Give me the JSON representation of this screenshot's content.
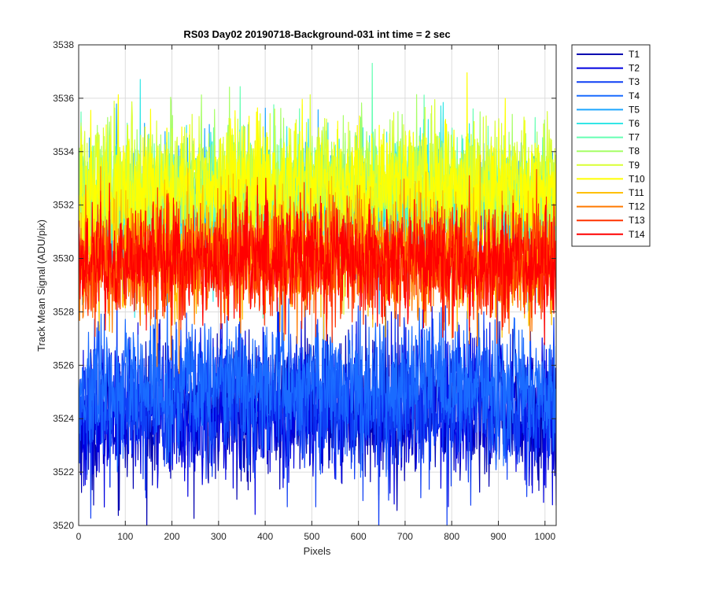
{
  "chart_data": {
    "type": "line",
    "title": "RS03 Day02 20190718-Background-031 int time = 2 sec",
    "xlabel": "Pixels",
    "ylabel": "Track Mean Signal (ADU/pix)",
    "xlim": [
      0,
      1024
    ],
    "ylim": [
      3520,
      3538
    ],
    "xticks": [
      0,
      100,
      200,
      300,
      400,
      500,
      600,
      700,
      800,
      900,
      1000
    ],
    "yticks": [
      3520,
      3522,
      3524,
      3526,
      3528,
      3530,
      3532,
      3534,
      3536,
      3538
    ],
    "grid": true,
    "legend_position": "outside-top-right",
    "n_points": 1024,
    "series": [
      {
        "name": "T1",
        "color": "#0000b0",
        "mean": 3524.0,
        "noise": 1.3
      },
      {
        "name": "T2",
        "color": "#0000e0",
        "mean": 3524.1,
        "noise": 1.3
      },
      {
        "name": "T3",
        "color": "#0f3ff5",
        "mean": 3524.3,
        "noise": 1.3
      },
      {
        "name": "T4",
        "color": "#1a6bff",
        "mean": 3525.0,
        "noise": 1.2
      },
      {
        "name": "T5",
        "color": "#1ea6ff",
        "mean": 3531.6,
        "noise": 1.2
      },
      {
        "name": "T6",
        "color": "#33e6e6",
        "mean": 3531.9,
        "noise": 1.2
      },
      {
        "name": "T7",
        "color": "#66ffb3",
        "mean": 3532.1,
        "noise": 1.2
      },
      {
        "name": "T8",
        "color": "#a6ff66",
        "mean": 3532.3,
        "noise": 1.2
      },
      {
        "name": "T9",
        "color": "#d9ff33",
        "mean": 3532.5,
        "noise": 1.2
      },
      {
        "name": "T10",
        "color": "#ffff00",
        "mean": 3532.3,
        "noise": 1.2
      },
      {
        "name": "T11",
        "color": "#ffc000",
        "mean": 3530.0,
        "noise": 1.1
      },
      {
        "name": "T12",
        "color": "#ff7a00",
        "mean": 3529.7,
        "noise": 1.1
      },
      {
        "name": "T13",
        "color": "#ff3300",
        "mean": 3529.6,
        "noise": 1.1
      },
      {
        "name": "T14",
        "color": "#ff0000",
        "mean": 3529.7,
        "noise": 1.0
      }
    ]
  }
}
